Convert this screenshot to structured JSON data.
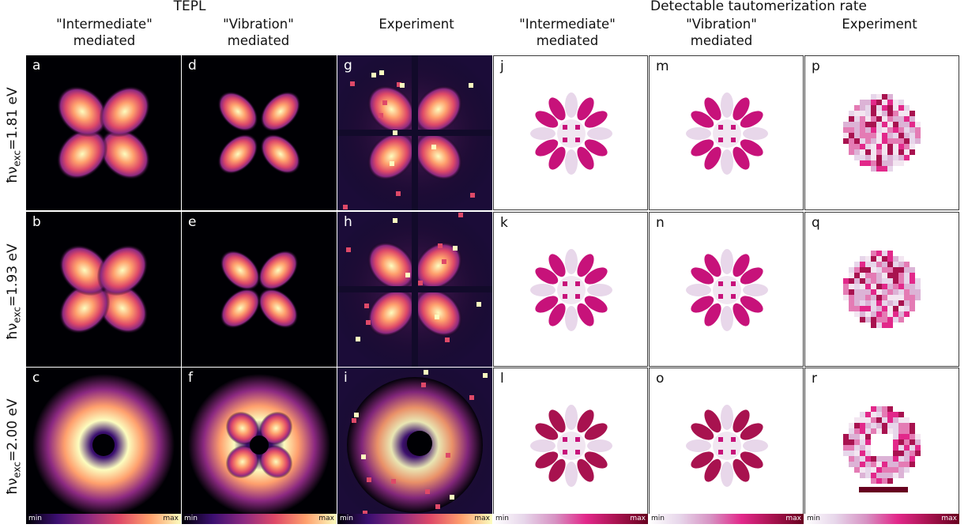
{
  "sections": {
    "tepl": "TEPL",
    "rate": "Detectable tautomerization rate"
  },
  "columns": [
    "\"Intermediate\"\nmediated",
    "\"Vibration\"\nmediated",
    "Experiment",
    "\"Intermediate\"\nmediated",
    "\"Vibration\"\nmediated",
    "Experiment"
  ],
  "rows": [
    {
      "prefix": "ħν",
      "sub": "exc",
      "value": "=1.81 eV"
    },
    {
      "prefix": "ħν",
      "sub": "exc",
      "value": "=1.93 eV"
    },
    {
      "prefix": "ħν",
      "sub": "exc",
      "value": "=2.00 eV"
    }
  ],
  "panel_letters": [
    [
      "a",
      "d",
      "g",
      "j",
      "m",
      "p"
    ],
    [
      "b",
      "e",
      "h",
      "k",
      "n",
      "q"
    ],
    [
      "c",
      "f",
      "i",
      "l",
      "o",
      "r"
    ]
  ],
  "colorbar": {
    "min": "min",
    "max": "max"
  },
  "colormaps": {
    "tepl": [
      "#000004",
      "#3b0f70",
      "#8c2981",
      "#de4968",
      "#fe9f6d",
      "#fcfdbf"
    ],
    "rate": [
      "#ffffff",
      "#e7d6ea",
      "#d792c3",
      "#e2288a",
      "#a8124f",
      "#67001f"
    ]
  }
}
